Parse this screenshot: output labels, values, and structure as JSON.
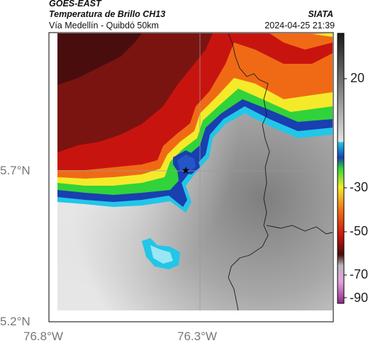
{
  "header": {
    "satellite": "GOES-EAST",
    "product": "Temperatura de Brillo CH13",
    "agency": "SIATA",
    "region": "Vía Medellín - Quibdó 50km",
    "datetime": "2024-04-25 21:39"
  },
  "map": {
    "x_ticks": [
      "76.8°W",
      "76.3°W"
    ],
    "y_ticks": [
      "5.7°N",
      "5.2°N"
    ],
    "marker": "star-icon"
  },
  "colorbar": {
    "ticks": [
      "20",
      "-30",
      "-50",
      "-70",
      "-90"
    ],
    "colors": {
      "warm_gray": "#8a8a8a",
      "cold_cyan": "#22c6e8",
      "blue": "#1a3fb0",
      "green": "#31d33a",
      "yellow": "#f4ea2a",
      "orange": "#f06a16",
      "red": "#c8140e",
      "dark_red": "#4a0d0d",
      "magenta": "#b04aa8"
    }
  }
}
